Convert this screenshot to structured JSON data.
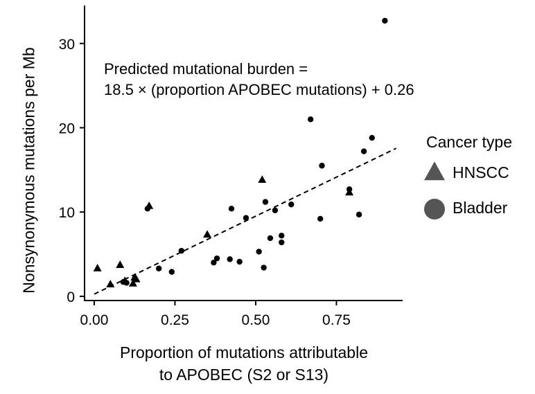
{
  "chart_data": {
    "type": "scatter",
    "xlabel_lines": [
      "Proportion of mutations attributable",
      "to APOBEC (S2 or S13)"
    ],
    "ylabel": "Nonsynonymous mutations per Mb",
    "xlim": [
      -0.03,
      0.955
    ],
    "ylim": [
      -0.5,
      34.5
    ],
    "x_ticks": [
      0.0,
      0.25,
      0.5,
      0.75
    ],
    "x_tick_labels": [
      "0.00",
      "0.25",
      "0.50",
      "0.75"
    ],
    "y_ticks": [
      0,
      10,
      20,
      30
    ],
    "y_tick_labels": [
      "0",
      "10",
      "20",
      "30"
    ],
    "grid": false,
    "annotation_lines": [
      "Predicted mutational burden =",
      "18.5 × (proportion APOBEC mutations) + 0.26"
    ],
    "fit_line": {
      "slope": 18.5,
      "intercept": 0.26,
      "x_range": [
        0.0,
        0.935
      ],
      "style": "dashed"
    },
    "legend": {
      "title": "Cancer type",
      "position": "right",
      "entries": [
        {
          "label": "HNSCC",
          "shape": "triangle"
        },
        {
          "label": "Bladder",
          "shape": "circle"
        }
      ]
    },
    "series": [
      {
        "name": "HNSCC",
        "marker": "triangle",
        "color": "#000000",
        "points": [
          [
            0.01,
            3.3
          ],
          [
            0.05,
            1.4
          ],
          [
            0.08,
            3.7
          ],
          [
            0.095,
            1.8
          ],
          [
            0.12,
            1.5
          ],
          [
            0.125,
            2.2
          ],
          [
            0.13,
            2.0
          ],
          [
            0.17,
            10.7
          ],
          [
            0.35,
            7.3
          ],
          [
            0.52,
            13.8
          ],
          [
            0.79,
            12.3
          ]
        ]
      },
      {
        "name": "Bladder",
        "marker": "circle",
        "color": "#000000",
        "points": [
          [
            0.09,
            1.7
          ],
          [
            0.1,
            1.6
          ],
          [
            0.165,
            10.4
          ],
          [
            0.2,
            3.3
          ],
          [
            0.24,
            2.9
          ],
          [
            0.27,
            5.4
          ],
          [
            0.37,
            4.0
          ],
          [
            0.38,
            4.5
          ],
          [
            0.42,
            4.4
          ],
          [
            0.425,
            10.4
          ],
          [
            0.45,
            4.1
          ],
          [
            0.47,
            9.3
          ],
          [
            0.51,
            5.3
          ],
          [
            0.525,
            3.4
          ],
          [
            0.53,
            11.2
          ],
          [
            0.545,
            6.9
          ],
          [
            0.56,
            10.2
          ],
          [
            0.58,
            6.4
          ],
          [
            0.58,
            7.2
          ],
          [
            0.61,
            10.9
          ],
          [
            0.67,
            21.0
          ],
          [
            0.7,
            9.2
          ],
          [
            0.705,
            15.5
          ],
          [
            0.79,
            12.7
          ],
          [
            0.82,
            9.7
          ],
          [
            0.835,
            17.2
          ],
          [
            0.86,
            18.8
          ],
          [
            0.9,
            32.7
          ]
        ]
      }
    ]
  }
}
